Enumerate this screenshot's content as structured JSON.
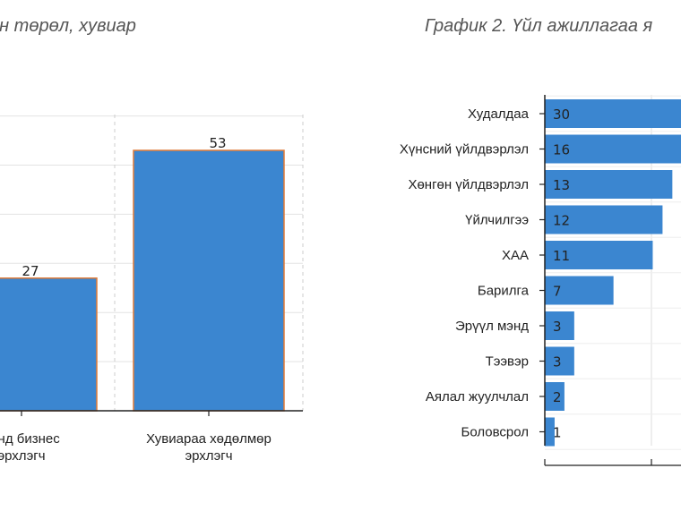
{
  "chart_data": [
    {
      "type": "bar",
      "title": "йн төрөл, хувиар",
      "categories": [
        "дунд бизнес\nэрхлэгч",
        "Хувиараа хөдөлмөр\nэрхлэгч"
      ],
      "values": [
        27,
        53
      ],
      "data_labels": [
        "27",
        "53"
      ],
      "ylim": [
        0,
        60
      ],
      "grid": true,
      "colors": {
        "bar": "#3b86d0",
        "bar_edge": "#e07b39"
      }
    },
    {
      "type": "bar",
      "orientation": "horizontal",
      "title": "График 2. Үйл ажиллагаа я",
      "categories": [
        "Худалдаа",
        "Хүнсний үйлдвэрлэл",
        "Хөнгөн үйлдвэрлэл",
        "Үйлчилгээ",
        "ХАА",
        "Барилга",
        "Эрүүл мэнд",
        "Тээвэр",
        "Аялал жуулчлал",
        "Боловсрол"
      ],
      "values": [
        30,
        16,
        13,
        12,
        11,
        7,
        3,
        3,
        2,
        1
      ],
      "data_labels": [
        "30",
        "16",
        "13",
        "12",
        "11",
        "7",
        "3",
        "3",
        "2",
        "1"
      ],
      "xlim": [
        0,
        12
      ],
      "grid": true,
      "colors": {
        "bar": "#3b86d0"
      }
    }
  ]
}
